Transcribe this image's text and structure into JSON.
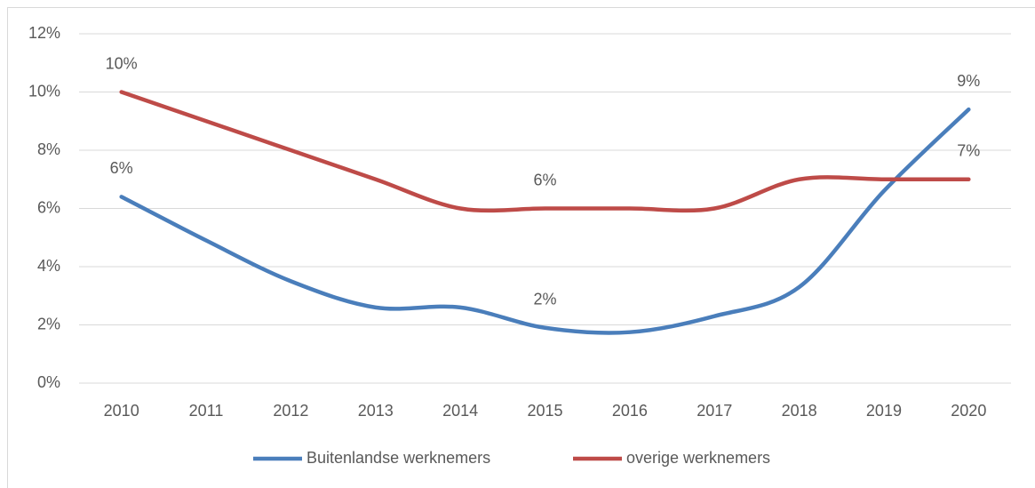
{
  "chart_data": {
    "type": "line",
    "categories": [
      "2010",
      "2011",
      "2012",
      "2013",
      "2014",
      "2015",
      "2016",
      "2017",
      "2018",
      "2019",
      "2020"
    ],
    "series": [
      {
        "name": "Buitenlandse werknemers",
        "color": "#4a7ebb",
        "values": [
          6.4,
          4.9,
          3.5,
          2.6,
          2.6,
          1.9,
          1.75,
          2.3,
          3.3,
          6.6,
          9.4
        ],
        "value_labels": [
          "6%",
          null,
          null,
          null,
          null,
          "2%",
          null,
          null,
          null,
          null,
          "9%"
        ]
      },
      {
        "name": "overige werknemers",
        "color": "#be4b48",
        "values": [
          10,
          9,
          8,
          7,
          6,
          6,
          6,
          6,
          7,
          7,
          7
        ],
        "value_labels": [
          "10%",
          null,
          null,
          null,
          null,
          "6%",
          null,
          null,
          null,
          null,
          "7%"
        ]
      }
    ],
    "ylim": [
      0,
      12
    ],
    "yticks": [
      {
        "value": 0,
        "label": "0%"
      },
      {
        "value": 2,
        "label": "2%"
      },
      {
        "value": 4,
        "label": "4%"
      },
      {
        "value": 6,
        "label": "6%"
      },
      {
        "value": 8,
        "label": "8%"
      },
      {
        "value": 10,
        "label": "10%"
      },
      {
        "value": 12,
        "label": "12%"
      }
    ],
    "grid": true,
    "legend": "bottom"
  }
}
